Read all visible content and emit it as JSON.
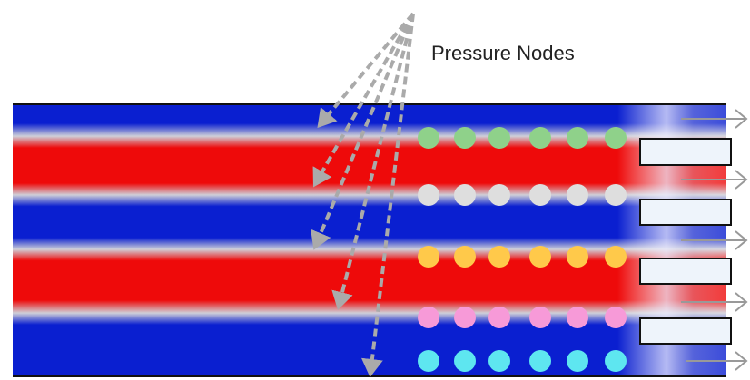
{
  "label": "Pressure Nodes"
}
